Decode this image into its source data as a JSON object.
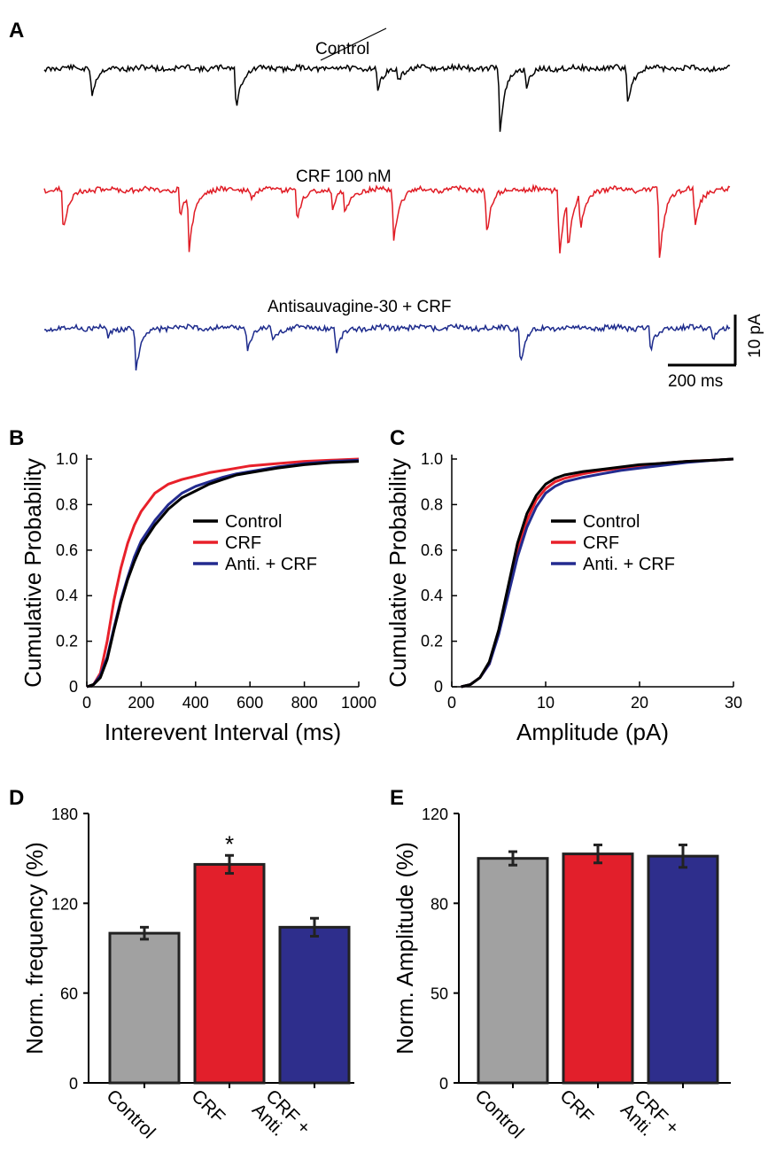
{
  "panels": {
    "A": "A",
    "B": "B",
    "C": "C",
    "D": "D",
    "E": "E"
  },
  "panel_a": {
    "traces": [
      {
        "label": "Control",
        "color": "#000000"
      },
      {
        "label": "CRF 100 nM",
        "color": "#e01b24"
      },
      {
        "label": "Antisauvagine-30 + CRF",
        "color": "#1c2a8c"
      }
    ],
    "scale_bar": {
      "y_label": "10 pA",
      "x_label": "200 ms"
    }
  },
  "colors": {
    "control_line": "#000000",
    "crf_line": "#e8202a",
    "anti_line": "#232b8f",
    "control_bar": "#a1a1a1",
    "crf_bar": "#e21f2b",
    "anti_bar": "#2e2e8c"
  },
  "chart_data": [
    {
      "id": "B",
      "type": "line",
      "title": "",
      "xlabel": "Interevent Interval (ms)",
      "ylabel": "Cumulative Probability",
      "xlim": [
        0,
        1000
      ],
      "ylim": [
        0,
        1.0
      ],
      "xticks": [
        "0",
        "200",
        "400",
        "600",
        "800",
        "1000"
      ],
      "yticks": [
        "0",
        "0.2",
        "0.4",
        "0.6",
        "0.8",
        "1.0"
      ],
      "legend": [
        "Control",
        "CRF",
        "Anti. + CRF"
      ],
      "series": [
        {
          "name": "Control",
          "x": [
            0,
            25,
            50,
            75,
            100,
            125,
            150,
            175,
            200,
            250,
            300,
            350,
            400,
            450,
            500,
            550,
            600,
            700,
            800,
            900,
            1000
          ],
          "y": [
            0,
            0.01,
            0.04,
            0.12,
            0.25,
            0.37,
            0.47,
            0.55,
            0.62,
            0.71,
            0.78,
            0.83,
            0.86,
            0.89,
            0.91,
            0.93,
            0.94,
            0.96,
            0.975,
            0.985,
            0.99
          ]
        },
        {
          "name": "CRF",
          "x": [
            0,
            25,
            50,
            75,
            100,
            125,
            150,
            175,
            200,
            250,
            300,
            350,
            400,
            450,
            500,
            550,
            600,
            700,
            800,
            900,
            1000
          ],
          "y": [
            0,
            0.01,
            0.06,
            0.2,
            0.38,
            0.52,
            0.63,
            0.71,
            0.77,
            0.85,
            0.89,
            0.91,
            0.925,
            0.94,
            0.95,
            0.96,
            0.97,
            0.98,
            0.99,
            0.995,
            1.0
          ]
        },
        {
          "name": "Anti. + CRF",
          "x": [
            0,
            25,
            50,
            75,
            100,
            125,
            150,
            175,
            200,
            250,
            300,
            350,
            400,
            450,
            500,
            550,
            600,
            700,
            800,
            900,
            1000
          ],
          "y": [
            0,
            0.01,
            0.05,
            0.13,
            0.26,
            0.38,
            0.48,
            0.57,
            0.64,
            0.73,
            0.8,
            0.85,
            0.88,
            0.9,
            0.92,
            0.935,
            0.945,
            0.965,
            0.98,
            0.99,
            0.995
          ]
        }
      ]
    },
    {
      "id": "C",
      "type": "line",
      "title": "",
      "xlabel": "Amplitude (pA)",
      "ylabel": "Cumulative Probability",
      "xlim": [
        0,
        30
      ],
      "ylim": [
        0,
        1.0
      ],
      "xticks": [
        "0",
        "10",
        "20",
        "30"
      ],
      "yticks": [
        "0",
        "0.2",
        "0.4",
        "0.6",
        "0.8",
        "1.0"
      ],
      "legend": [
        "Control",
        "CRF",
        "Anti. + CRF"
      ],
      "series": [
        {
          "name": "Control",
          "x": [
            1,
            2,
            3,
            4,
            5,
            6,
            7,
            8,
            9,
            10,
            11,
            12,
            14,
            16,
            18,
            20,
            22,
            25,
            28,
            30
          ],
          "y": [
            0,
            0.01,
            0.04,
            0.11,
            0.25,
            0.44,
            0.63,
            0.76,
            0.84,
            0.89,
            0.915,
            0.93,
            0.945,
            0.955,
            0.965,
            0.975,
            0.98,
            0.99,
            0.995,
            1.0
          ]
        },
        {
          "name": "CRF",
          "x": [
            1,
            2,
            3,
            4,
            5,
            6,
            7,
            8,
            9,
            10,
            11,
            12,
            14,
            16,
            18,
            20,
            22,
            25,
            28,
            30
          ],
          "y": [
            0,
            0.01,
            0.04,
            0.1,
            0.24,
            0.42,
            0.6,
            0.73,
            0.82,
            0.87,
            0.9,
            0.915,
            0.935,
            0.95,
            0.96,
            0.97,
            0.98,
            0.99,
            0.995,
            1.0
          ]
        },
        {
          "name": "Anti. + CRF",
          "x": [
            1,
            2,
            3,
            4,
            5,
            6,
            7,
            8,
            9,
            10,
            11,
            12,
            14,
            16,
            18,
            20,
            22,
            25,
            28,
            30
          ],
          "y": [
            0,
            0.01,
            0.04,
            0.1,
            0.23,
            0.4,
            0.57,
            0.7,
            0.79,
            0.85,
            0.88,
            0.9,
            0.92,
            0.935,
            0.95,
            0.96,
            0.97,
            0.985,
            0.995,
            1.0
          ]
        }
      ]
    },
    {
      "id": "D",
      "type": "bar",
      "title": "",
      "xlabel": "",
      "ylabel": "Norm. frequency (%)",
      "ylim": [
        0,
        180
      ],
      "yticks": [
        "0",
        "60",
        "120",
        "180"
      ],
      "categories": [
        "Control",
        "CRF",
        "CRF +\nAnti."
      ],
      "category_lines": [
        [
          "Control"
        ],
        [
          "CRF"
        ],
        [
          "CRF +",
          "Anti."
        ]
      ],
      "values": [
        100,
        146,
        104
      ],
      "errors": [
        4,
        6,
        6
      ],
      "annotations": [
        "",
        "*",
        ""
      ]
    },
    {
      "id": "E",
      "type": "bar",
      "title": "",
      "xlabel": "",
      "ylabel": "Norm. Amplitude (%)",
      "ylim": [
        0,
        120
      ],
      "yticks": [
        "0",
        "50",
        "80",
        "120"
      ],
      "categories": [
        "Control",
        "CRF",
        "CRF +\nAnti."
      ],
      "category_lines": [
        [
          "Control"
        ],
        [
          "CRF"
        ],
        [
          "CRF +",
          "Anti."
        ]
      ],
      "values": [
        100,
        102,
        101
      ],
      "errors": [
        3,
        4,
        5
      ],
      "annotations": [
        "",
        "",
        ""
      ]
    }
  ]
}
